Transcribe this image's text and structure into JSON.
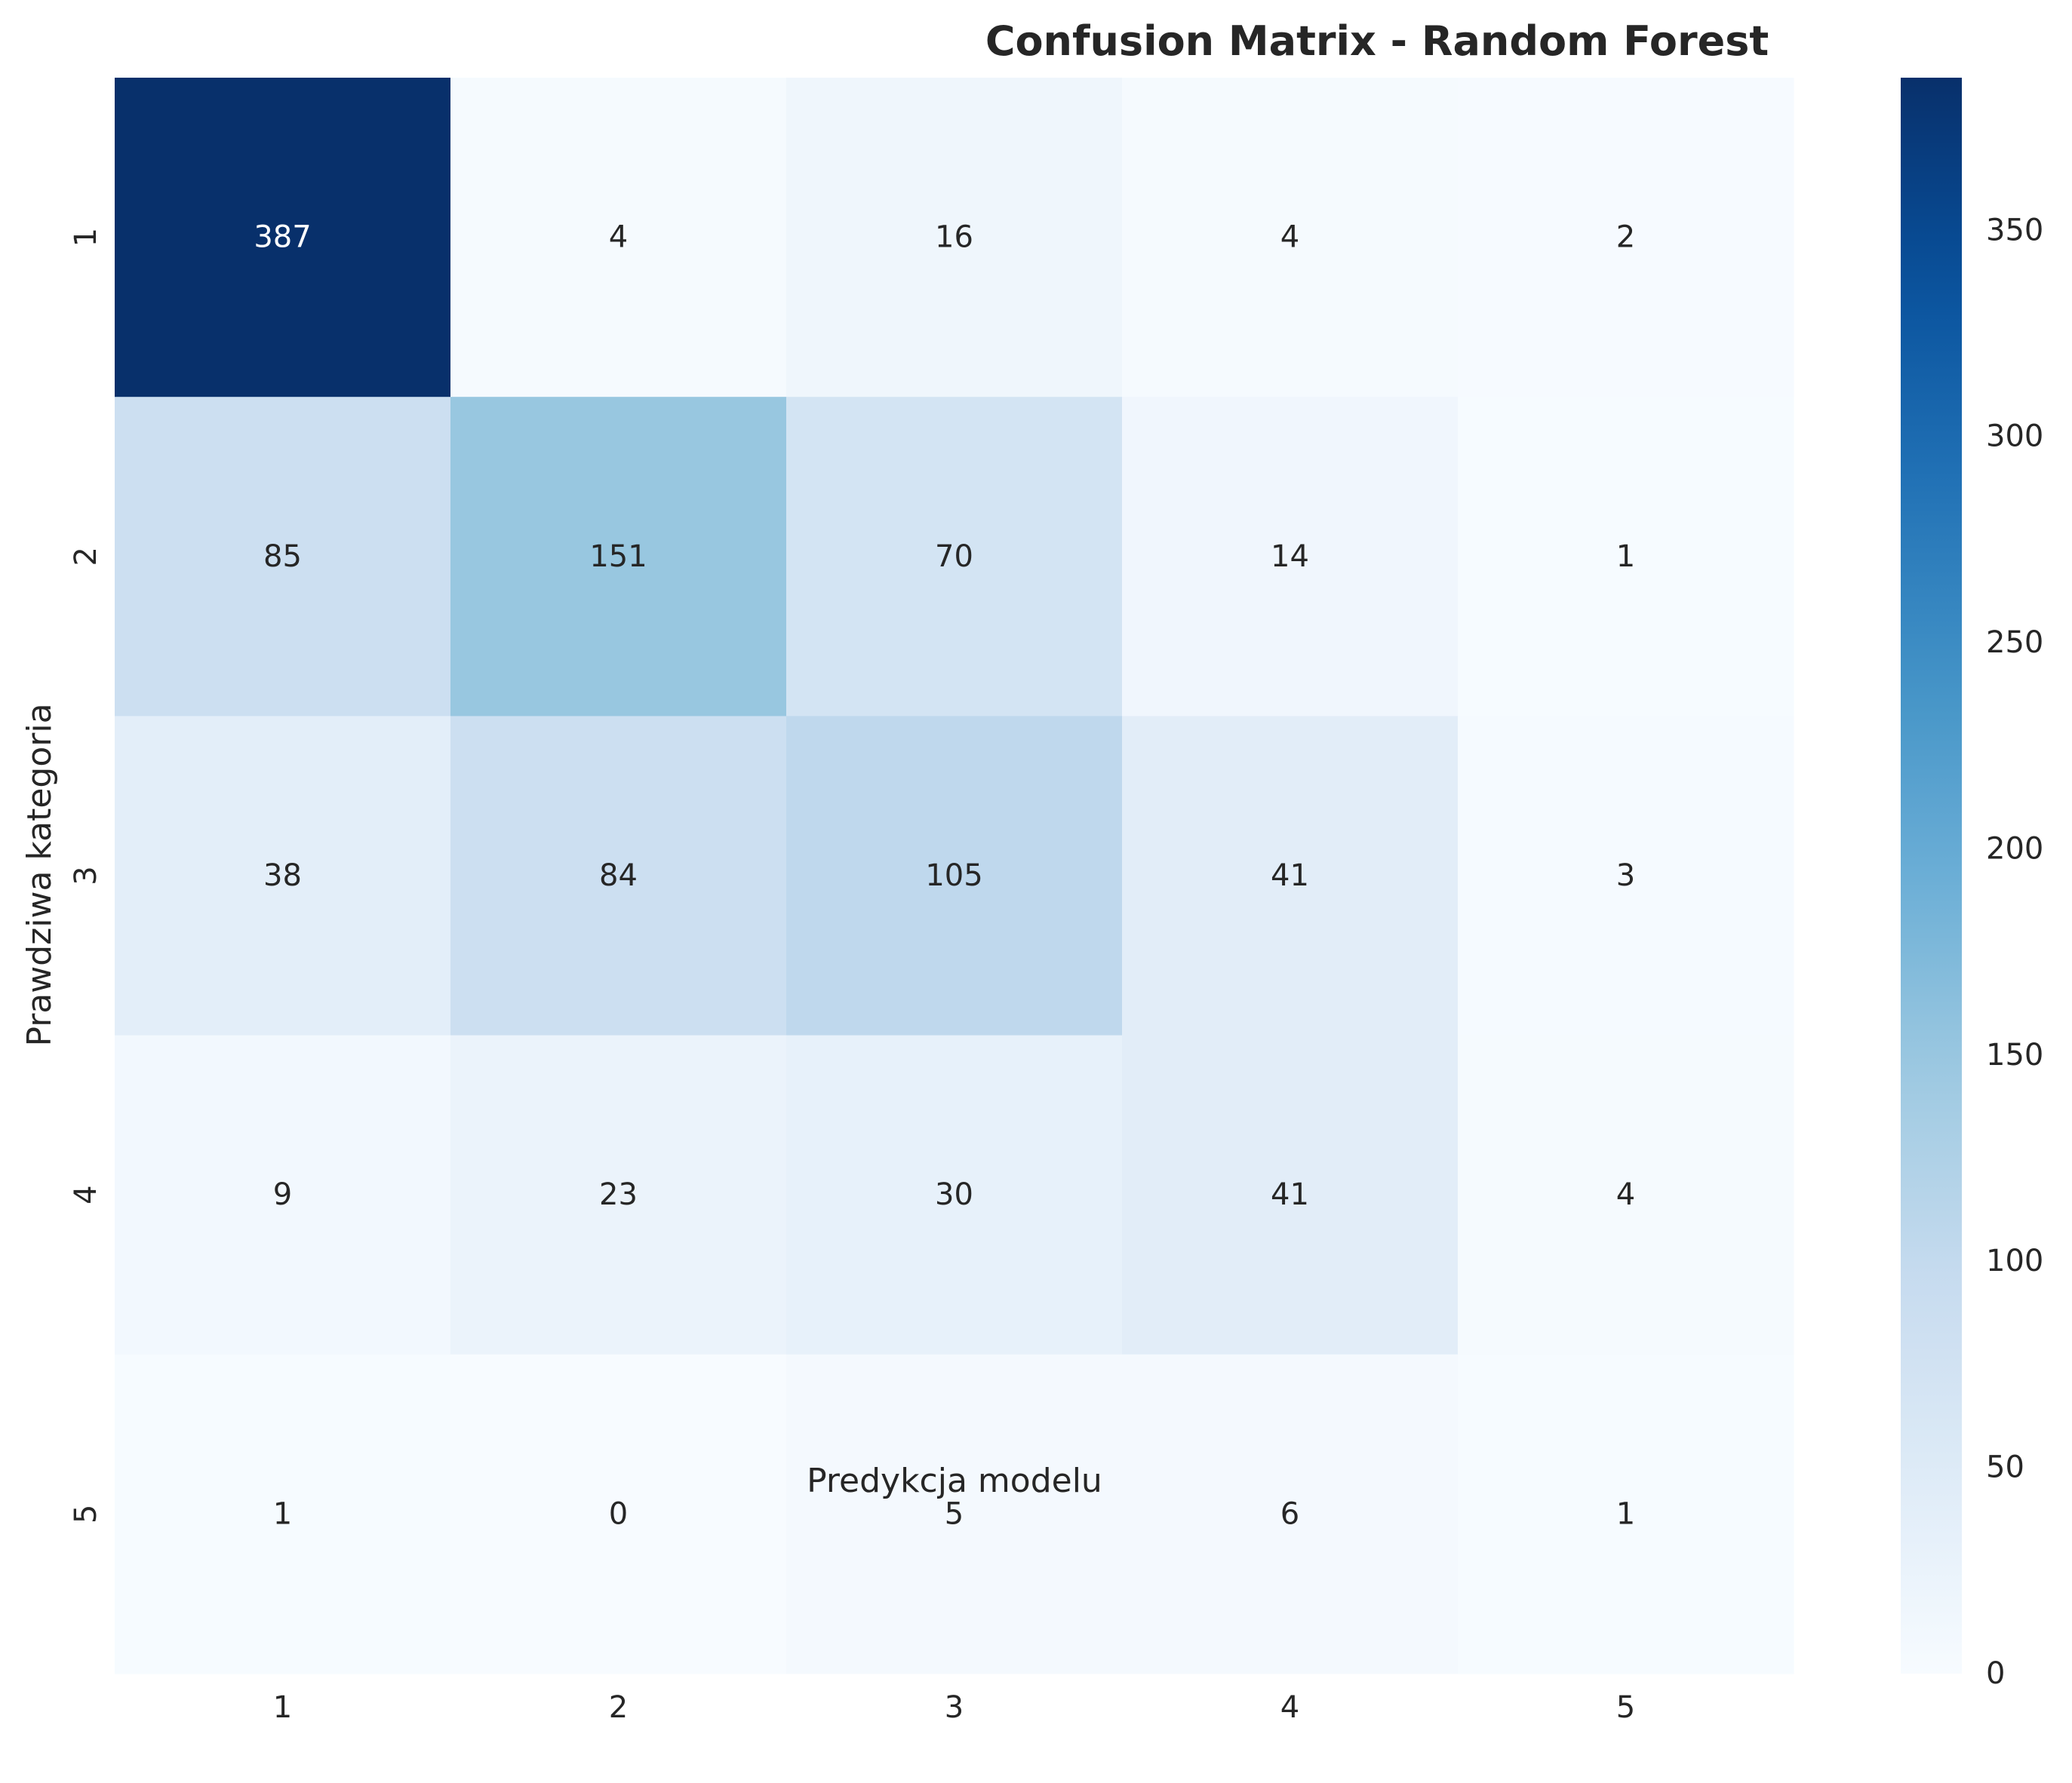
{
  "chart_data": {
    "type": "heatmap",
    "title": "Confusion Matrix - Random Forest",
    "xlabel": "Predykcja modelu",
    "ylabel": "Prawdziwa kategoria",
    "x_categories": [
      "1",
      "2",
      "3",
      "4",
      "5"
    ],
    "y_categories": [
      "1",
      "2",
      "3",
      "4",
      "5"
    ],
    "matrix": [
      [
        387,
        4,
        16,
        4,
        2
      ],
      [
        85,
        151,
        70,
        14,
        1
      ],
      [
        38,
        84,
        105,
        41,
        3
      ],
      [
        9,
        23,
        30,
        41,
        4
      ],
      [
        1,
        0,
        5,
        6,
        1
      ]
    ],
    "colormap": "Blues",
    "color_range": [
      0,
      387
    ],
    "colorbar_ticks": [
      0,
      50,
      100,
      150,
      200,
      250,
      300,
      350
    ],
    "grid": false
  }
}
